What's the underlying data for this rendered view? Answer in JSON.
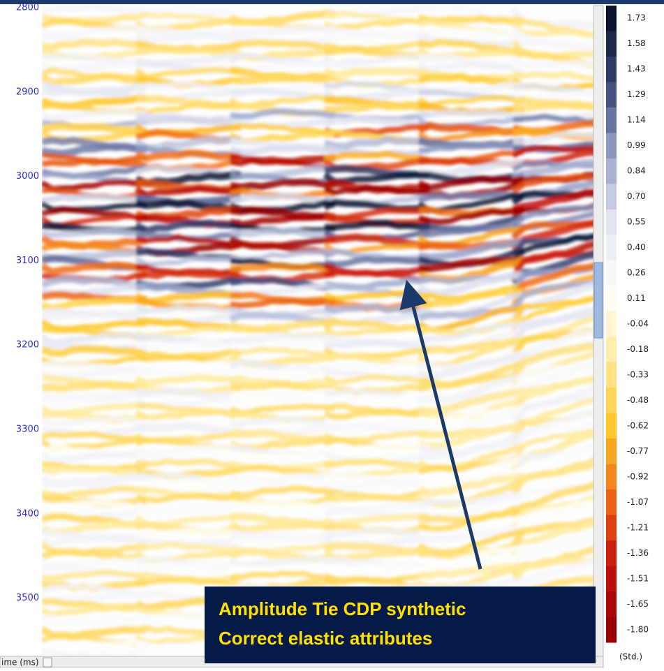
{
  "axis": {
    "label": "ime (ms)",
    "ticks": [
      2800,
      2900,
      3000,
      3100,
      3200,
      3300,
      3400,
      3500
    ]
  },
  "colorbar": {
    "labels": [
      "1.73",
      "1.58",
      "1.43",
      "1.29",
      "1.14",
      "0.99",
      "0.84",
      "0.70",
      "0.55",
      "0.40",
      "0.26",
      "0.11",
      "-0.04",
      "-0.18",
      "-0.33",
      "-0.48",
      "-0.62",
      "-0.77",
      "-0.92",
      "-1.07",
      "-1.21",
      "-1.36",
      "-1.51",
      "-1.65",
      "-1.80"
    ],
    "unit": "(Std.)"
  },
  "annotation": {
    "lines": [
      "Amplitude Tie CDP synthetic",
      "Correct elastic attributes"
    ]
  }
}
